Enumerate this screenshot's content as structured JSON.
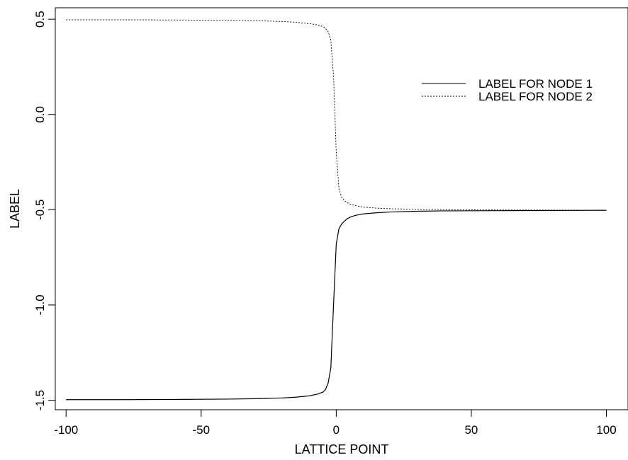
{
  "chart_data": {
    "type": "line",
    "xlabel": "LATTICE POINT",
    "ylabel": "LABEL",
    "xlim": [
      -104,
      108
    ],
    "ylim": [
      -1.55,
      0.56
    ],
    "x_ticks": [
      -100,
      -50,
      0,
      50,
      100
    ],
    "x_tick_labels": [
      "-100",
      "-50",
      "0",
      "50",
      "100"
    ],
    "y_ticks": [
      -1.5,
      -1.0,
      -0.5,
      0.0,
      0.5
    ],
    "y_tick_labels": [
      "-1.5",
      "-1.0",
      "-0.5",
      "0.0",
      "0.5"
    ],
    "grid": false,
    "legend_position": "top-right",
    "series": [
      {
        "name": "LABEL FOR NODE 1",
        "style": "solid",
        "color": "#000000",
        "x": [
          -100,
          -80,
          -60,
          -40,
          -30,
          -20,
          -15,
          -10,
          -7,
          -5,
          -4,
          -3,
          -2,
          -1,
          0,
          1,
          2,
          3,
          4,
          5,
          7,
          10,
          15,
          20,
          30,
          40,
          60,
          80,
          100
        ],
        "y": [
          -1.497,
          -1.497,
          -1.496,
          -1.494,
          -1.492,
          -1.488,
          -1.484,
          -1.477,
          -1.468,
          -1.458,
          -1.445,
          -1.41,
          -1.33,
          -1.0,
          -0.68,
          -0.6,
          -0.575,
          -0.56,
          -0.548,
          -0.54,
          -0.53,
          -0.522,
          -0.516,
          -0.512,
          -0.508,
          -0.506,
          -0.505,
          -0.504,
          -0.503
        ]
      },
      {
        "name": "LABEL FOR NODE 2",
        "style": "dotted",
        "color": "#000000",
        "x": [
          -100,
          -80,
          -60,
          -40,
          -30,
          -20,
          -15,
          -10,
          -7,
          -5,
          -4,
          -3,
          -2,
          -1,
          0,
          1,
          2,
          3,
          4,
          5,
          7,
          10,
          15,
          20,
          30,
          40,
          60,
          80,
          100
        ],
        "y": [
          0.497,
          0.497,
          0.496,
          0.494,
          0.492,
          0.488,
          0.484,
          0.477,
          0.47,
          0.462,
          0.452,
          0.435,
          0.39,
          0.2,
          -0.2,
          -0.39,
          -0.435,
          -0.452,
          -0.462,
          -0.47,
          -0.478,
          -0.486,
          -0.492,
          -0.495,
          -0.498,
          -0.5,
          -0.501,
          -0.502,
          -0.503
        ]
      }
    ]
  }
}
